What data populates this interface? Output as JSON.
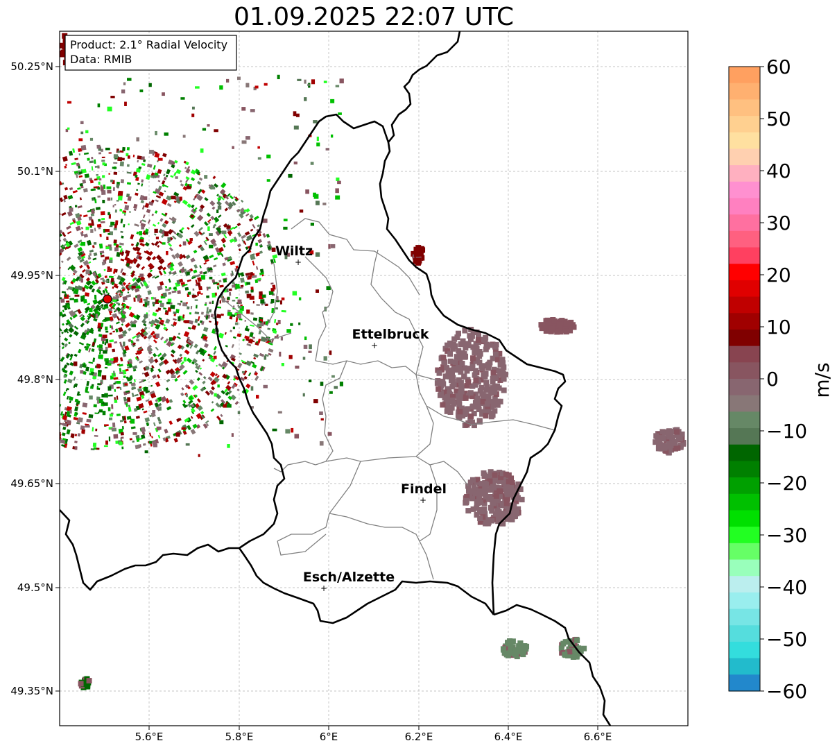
{
  "title": "01.09.2025 22:07 UTC",
  "info_box": {
    "product": "Product: 2.1° Radial Velocity",
    "source": "Data: RMIB"
  },
  "lat_labels": [
    "50.25°N",
    "50.1°N",
    "49.95°N",
    "49.8°N",
    "49.65°N",
    "49.5°N",
    "49.35°N"
  ],
  "lon_labels": [
    "5.6°E",
    "5.8°E",
    "6°E",
    "6.2°E",
    "6.4°E",
    "6.6°E"
  ],
  "cities": [
    {
      "name": "Wiltz"
    },
    {
      "name": "Ettelbruck"
    },
    {
      "name": "Findel"
    },
    {
      "name": "Esch/Alzette"
    }
  ],
  "radar_site": {
    "color": "#e00000"
  },
  "colorbar": {
    "label": "m/s",
    "ticks": [
      "60",
      "50",
      "40",
      "30",
      "20",
      "10",
      "0",
      "−10",
      "−20",
      "−30",
      "−40",
      "−50",
      "−60"
    ],
    "range": [
      -60,
      60
    ],
    "colors": [
      "#ffa060",
      "#ffb070",
      "#ffc080",
      "#ffd090",
      "#ffe0a0",
      "#ffd0b0",
      "#ffb0c0",
      "#ff90d0",
      "#ff80c0",
      "#ff70a0",
      "#ff6080",
      "#ff4060",
      "#ff0000",
      "#e00000",
      "#c00000",
      "#a00000",
      "#800000",
      "#884450",
      "#885560",
      "#886670",
      "#887777",
      "#668866",
      "#557755",
      "#006600",
      "#008000",
      "#00a000",
      "#00c000",
      "#00e000",
      "#22ff22",
      "#66ff66",
      "#99ffbb",
      "#bbeeee",
      "#99eeee",
      "#77e5e5",
      "#55dddd",
      "#33dddd",
      "#22bbcc",
      "#2288cc"
    ]
  },
  "colors": {
    "border": "#000000",
    "communes": "#808080",
    "grid": "#b0b0b0"
  }
}
